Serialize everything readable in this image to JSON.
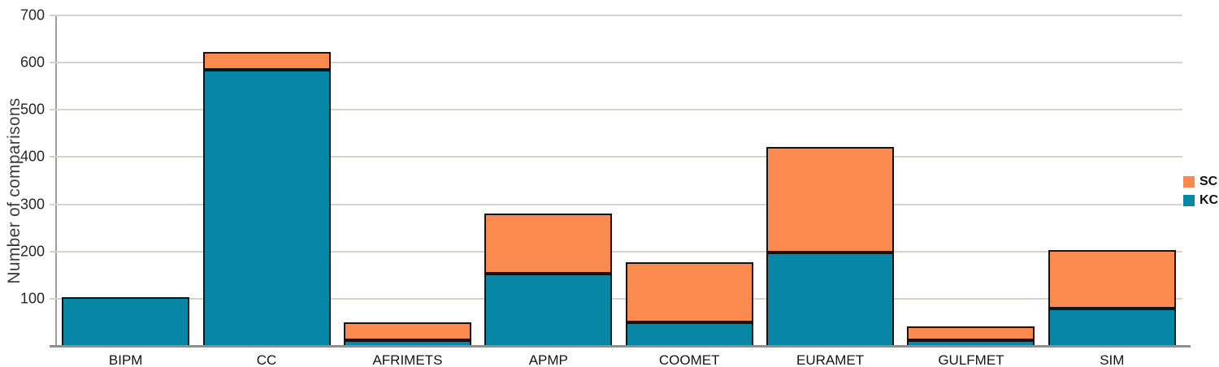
{
  "chart_data": {
    "type": "bar",
    "stacked": true,
    "title": "",
    "xlabel": "",
    "ylabel": "Number of comparisons",
    "ylim": [
      0,
      700
    ],
    "yticks": [
      100,
      200,
      300,
      400,
      500,
      600,
      700
    ],
    "grid": true,
    "legend_position": "right",
    "categories": [
      "BIPM",
      "CC",
      "AFRIMETS",
      "APMP",
      "COOMET",
      "EURAMET",
      "GULFMET",
      "SIM"
    ],
    "series": [
      {
        "name": "KC",
        "color": "#0886a6",
        "values": [
          103,
          585,
          6,
          153,
          50,
          198,
          5,
          79
        ]
      },
      {
        "name": "SC",
        "color": "#fa8a4d",
        "values": [
          0,
          38,
          38,
          128,
          128,
          224,
          29,
          124
        ]
      }
    ],
    "totals": [
      103,
      623,
      44,
      281,
      178,
      422,
      34,
      203
    ],
    "legend": [
      {
        "label": "SC",
        "color": "#fa8a4d"
      },
      {
        "label": "KC",
        "color": "#0886a6"
      }
    ]
  },
  "colors": {
    "background": "#ffffff",
    "gridline": "#d9d2c9",
    "axis": "#8e8e8e",
    "bar_border": "#141414",
    "kc": "#0886a6",
    "sc": "#fa8a4d",
    "text": "#262626"
  }
}
